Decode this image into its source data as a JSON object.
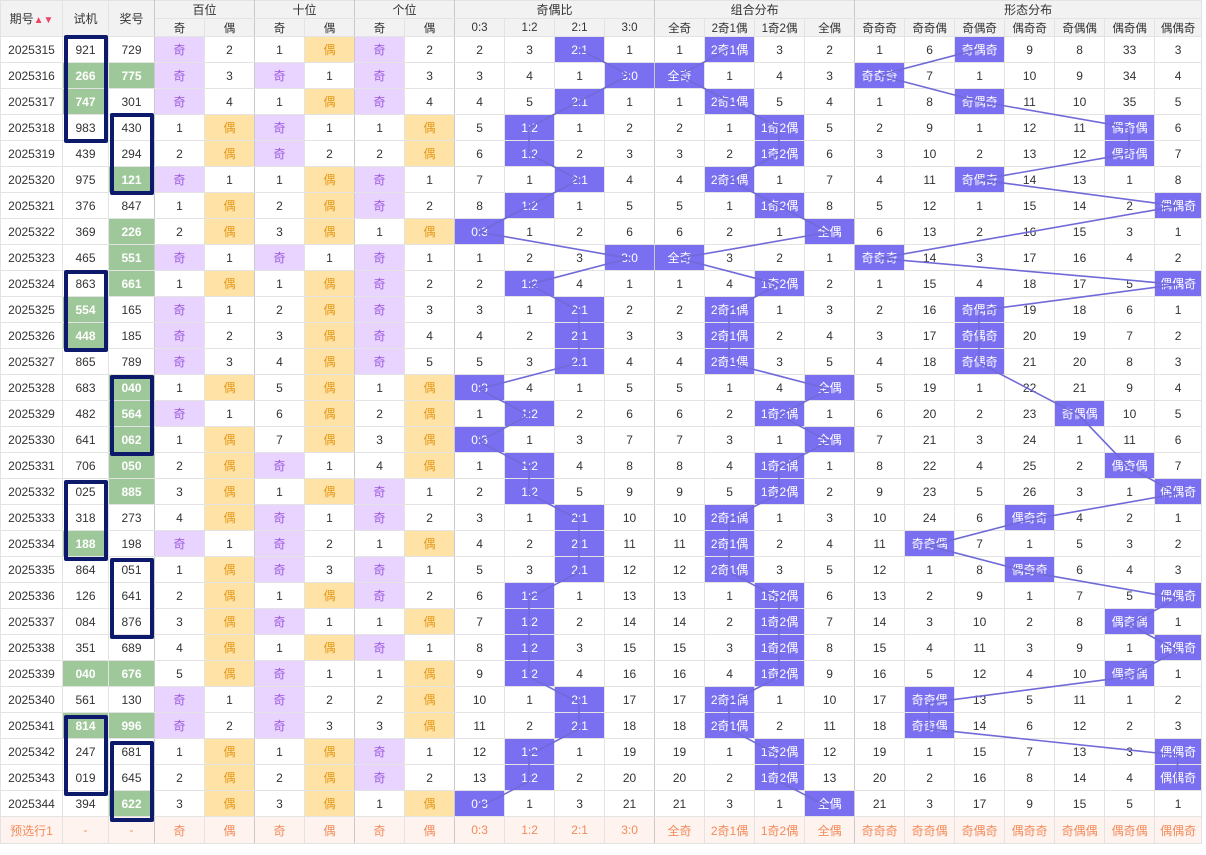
{
  "headers": {
    "period": "期号",
    "test": "试机",
    "prize": "奖号",
    "hundreds": "百位",
    "tens": "十位",
    "units": "个位",
    "ratio": "奇偶比",
    "combo": "组合分布",
    "shape": "形态分布"
  },
  "subheaders": {
    "odd": "奇",
    "even": "偶",
    "ratios": [
      "0:3",
      "1:2",
      "2:1",
      "3:0"
    ],
    "combos": [
      "全奇",
      "2奇1偶",
      "1奇2偶",
      "全偶"
    ],
    "shapes": [
      "奇奇奇",
      "奇奇偶",
      "奇偶奇",
      "偶奇奇",
      "奇偶偶",
      "偶奇偶",
      "偶偶奇"
    ]
  },
  "colors": {
    "odd_bg": "#e9d3ff",
    "even_bg": "#ffe2a6",
    "green": "#9fc89a",
    "pill": "#7a6ff0",
    "box": "#0d1a6b",
    "line": "#6f6ad8"
  },
  "rows": [
    {
      "p": "2025315",
      "t": "921",
      "a": "729",
      "h": [
        "奇",
        "2"
      ],
      "s": [
        "1",
        "偶"
      ],
      "g": [
        "奇",
        "2"
      ],
      "r": [
        "2",
        "3",
        "2:1",
        "1"
      ],
      "c": [
        "1",
        "2奇1偶",
        "3",
        "2"
      ],
      "f": [
        "1",
        "6",
        "奇偶奇",
        "9",
        "8",
        "33",
        "3"
      ]
    },
    {
      "p": "2025316",
      "t": "266",
      "a": "775",
      "h": [
        "奇",
        "3"
      ],
      "s": [
        "奇",
        "1"
      ],
      "g": [
        "奇",
        "3"
      ],
      "r": [
        "3",
        "4",
        "1",
        "3:0"
      ],
      "c": [
        "全奇",
        "1",
        "4",
        "3"
      ],
      "f": [
        "奇奇奇",
        "7",
        "1",
        "10",
        "9",
        "34",
        "4"
      ]
    },
    {
      "p": "2025317",
      "t": "747",
      "a": "301",
      "h": [
        "奇",
        "4"
      ],
      "s": [
        "1",
        "偶"
      ],
      "g": [
        "奇",
        "4"
      ],
      "r": [
        "4",
        "5",
        "2:1",
        "1"
      ],
      "c": [
        "1",
        "2奇1偶",
        "5",
        "4"
      ],
      "f": [
        "1",
        "8",
        "奇偶奇",
        "11",
        "10",
        "35",
        "5"
      ]
    },
    {
      "p": "2025318",
      "t": "983",
      "a": "430",
      "h": [
        "1",
        "偶"
      ],
      "s": [
        "奇",
        "1"
      ],
      "g": [
        "1",
        "偶"
      ],
      "r": [
        "5",
        "1:2",
        "1",
        "2"
      ],
      "c": [
        "2",
        "1",
        "1奇2偶",
        "5"
      ],
      "f": [
        "2",
        "9",
        "1",
        "12",
        "11",
        "偶奇偶",
        "6"
      ]
    },
    {
      "p": "2025319",
      "t": "439",
      "a": "294",
      "h": [
        "2",
        "偶"
      ],
      "s": [
        "奇",
        "2"
      ],
      "g": [
        "2",
        "偶"
      ],
      "r": [
        "6",
        "1:2",
        "2",
        "3"
      ],
      "c": [
        "3",
        "2",
        "1奇2偶",
        "6"
      ],
      "f": [
        "3",
        "10",
        "2",
        "13",
        "12",
        "偶奇偶",
        "7"
      ]
    },
    {
      "p": "2025320",
      "t": "975",
      "a": "121",
      "h": [
        "奇",
        "1"
      ],
      "s": [
        "1",
        "偶"
      ],
      "g": [
        "奇",
        "1"
      ],
      "r": [
        "7",
        "1",
        "2:1",
        "4"
      ],
      "c": [
        "4",
        "2奇1偶",
        "1",
        "7"
      ],
      "f": [
        "4",
        "11",
        "奇偶奇",
        "14",
        "13",
        "1",
        "8"
      ]
    },
    {
      "p": "2025321",
      "t": "376",
      "a": "847",
      "h": [
        "1",
        "偶"
      ],
      "s": [
        "2",
        "偶"
      ],
      "g": [
        "奇",
        "2"
      ],
      "r": [
        "8",
        "1:2",
        "1",
        "5"
      ],
      "c": [
        "5",
        "1",
        "1奇2偶",
        "8"
      ],
      "f": [
        "5",
        "12",
        "1",
        "15",
        "14",
        "2",
        "偶偶奇"
      ]
    },
    {
      "p": "2025322",
      "t": "369",
      "a": "226",
      "h": [
        "2",
        "偶"
      ],
      "s": [
        "3",
        "偶"
      ],
      "g": [
        "1",
        "偶"
      ],
      "r": [
        "0:3",
        "1",
        "2",
        "6"
      ],
      "c": [
        "6",
        "2",
        "1",
        "全偶"
      ],
      "f": [
        "6",
        "13",
        "2",
        "16",
        "15",
        "3",
        "1"
      ]
    },
    {
      "p": "2025323",
      "t": "465",
      "a": "551",
      "h": [
        "奇",
        "1"
      ],
      "s": [
        "奇",
        "1"
      ],
      "g": [
        "奇",
        "1"
      ],
      "r": [
        "1",
        "2",
        "3",
        "3:0"
      ],
      "c": [
        "全奇",
        "3",
        "2",
        "1"
      ],
      "f": [
        "奇奇奇",
        "14",
        "3",
        "17",
        "16",
        "4",
        "2"
      ]
    },
    {
      "p": "2025324",
      "t": "863",
      "a": "661",
      "h": [
        "1",
        "偶"
      ],
      "s": [
        "1",
        "偶"
      ],
      "g": [
        "奇",
        "2"
      ],
      "r": [
        "2",
        "1:2",
        "4",
        "1"
      ],
      "c": [
        "1",
        "4",
        "1奇2偶",
        "2"
      ],
      "f": [
        "1",
        "15",
        "4",
        "18",
        "17",
        "5",
        "偶偶奇"
      ]
    },
    {
      "p": "2025325",
      "t": "554",
      "a": "165",
      "h": [
        "奇",
        "1"
      ],
      "s": [
        "2",
        "偶"
      ],
      "g": [
        "奇",
        "3"
      ],
      "r": [
        "3",
        "1",
        "2:1",
        "2"
      ],
      "c": [
        "2",
        "2奇1偶",
        "1",
        "3"
      ],
      "f": [
        "2",
        "16",
        "奇偶奇",
        "19",
        "18",
        "6",
        "1"
      ]
    },
    {
      "p": "2025326",
      "t": "448",
      "a": "185",
      "h": [
        "奇",
        "2"
      ],
      "s": [
        "3",
        "偶"
      ],
      "g": [
        "奇",
        "4"
      ],
      "r": [
        "4",
        "2",
        "2:1",
        "3"
      ],
      "c": [
        "3",
        "2奇1偶",
        "2",
        "4"
      ],
      "f": [
        "3",
        "17",
        "奇偶奇",
        "20",
        "19",
        "7",
        "2"
      ]
    },
    {
      "p": "2025327",
      "t": "865",
      "a": "789",
      "h": [
        "奇",
        "3"
      ],
      "s": [
        "4",
        "偶"
      ],
      "g": [
        "奇",
        "5"
      ],
      "r": [
        "5",
        "3",
        "2:1",
        "4"
      ],
      "c": [
        "4",
        "2奇1偶",
        "3",
        "5"
      ],
      "f": [
        "4",
        "18",
        "奇偶奇",
        "21",
        "20",
        "8",
        "3"
      ]
    },
    {
      "p": "2025328",
      "t": "683",
      "a": "040",
      "h": [
        "1",
        "偶"
      ],
      "s": [
        "5",
        "偶"
      ],
      "g": [
        "1",
        "偶"
      ],
      "r": [
        "0:3",
        "4",
        "1",
        "5"
      ],
      "c": [
        "5",
        "1",
        "4",
        "全偶"
      ],
      "f": [
        "5",
        "19",
        "1",
        "22",
        "21",
        "9",
        "4"
      ]
    },
    {
      "p": "2025329",
      "t": "482",
      "a": "564",
      "h": [
        "奇",
        "1"
      ],
      "s": [
        "6",
        "偶"
      ],
      "g": [
        "2",
        "偶"
      ],
      "r": [
        "1",
        "1:2",
        "2",
        "6"
      ],
      "c": [
        "6",
        "2",
        "1奇2偶",
        "1"
      ],
      "f": [
        "6",
        "20",
        "2",
        "23",
        "奇偶偶",
        "10",
        "5"
      ]
    },
    {
      "p": "2025330",
      "t": "641",
      "a": "062",
      "h": [
        "1",
        "偶"
      ],
      "s": [
        "7",
        "偶"
      ],
      "g": [
        "3",
        "偶"
      ],
      "r": [
        "0:3",
        "1",
        "3",
        "7"
      ],
      "c": [
        "7",
        "3",
        "1",
        "全偶"
      ],
      "f": [
        "7",
        "21",
        "3",
        "24",
        "1",
        "11",
        "6"
      ]
    },
    {
      "p": "2025331",
      "t": "706",
      "a": "050",
      "h": [
        "2",
        "偶"
      ],
      "s": [
        "奇",
        "1"
      ],
      "g": [
        "4",
        "偶"
      ],
      "r": [
        "1",
        "1:2",
        "4",
        "8"
      ],
      "c": [
        "8",
        "4",
        "1奇2偶",
        "1"
      ],
      "f": [
        "8",
        "22",
        "4",
        "25",
        "2",
        "偶奇偶",
        "7"
      ]
    },
    {
      "p": "2025332",
      "t": "025",
      "a": "885",
      "h": [
        "3",
        "偶"
      ],
      "s": [
        "1",
        "偶"
      ],
      "g": [
        "奇",
        "1"
      ],
      "r": [
        "2",
        "1:2",
        "5",
        "9"
      ],
      "c": [
        "9",
        "5",
        "1奇2偶",
        "2"
      ],
      "f": [
        "9",
        "23",
        "5",
        "26",
        "3",
        "1",
        "偶偶奇"
      ]
    },
    {
      "p": "2025333",
      "t": "318",
      "a": "273",
      "h": [
        "4",
        "偶"
      ],
      "s": [
        "奇",
        "1"
      ],
      "g": [
        "奇",
        "2"
      ],
      "r": [
        "3",
        "1",
        "2:1",
        "10"
      ],
      "c": [
        "10",
        "2奇1偶",
        "1",
        "3"
      ],
      "f": [
        "10",
        "24",
        "6",
        "偶奇奇",
        "4",
        "2",
        "1"
      ]
    },
    {
      "p": "2025334",
      "t": "188",
      "a": "198",
      "h": [
        "奇",
        "1"
      ],
      "s": [
        "奇",
        "2"
      ],
      "g": [
        "1",
        "偶"
      ],
      "r": [
        "4",
        "2",
        "2:1",
        "11"
      ],
      "c": [
        "11",
        "2奇1偶",
        "2",
        "4"
      ],
      "f": [
        "11",
        "奇奇偶",
        "7",
        "1",
        "5",
        "3",
        "2"
      ]
    },
    {
      "p": "2025335",
      "t": "864",
      "a": "051",
      "h": [
        "1",
        "偶"
      ],
      "s": [
        "奇",
        "3"
      ],
      "g": [
        "奇",
        "1"
      ],
      "r": [
        "5",
        "3",
        "2:1",
        "12"
      ],
      "c": [
        "12",
        "2奇1偶",
        "3",
        "5"
      ],
      "f": [
        "12",
        "1",
        "8",
        "偶奇奇",
        "6",
        "4",
        "3"
      ]
    },
    {
      "p": "2025336",
      "t": "126",
      "a": "641",
      "h": [
        "2",
        "偶"
      ],
      "s": [
        "1",
        "偶"
      ],
      "g": [
        "奇",
        "2"
      ],
      "r": [
        "6",
        "1:2",
        "1",
        "13"
      ],
      "c": [
        "13",
        "1",
        "1奇2偶",
        "6"
      ],
      "f": [
        "13",
        "2",
        "9",
        "1",
        "7",
        "5",
        "偶偶奇"
      ]
    },
    {
      "p": "2025337",
      "t": "084",
      "a": "876",
      "h": [
        "3",
        "偶"
      ],
      "s": [
        "奇",
        "1"
      ],
      "g": [
        "1",
        "偶"
      ],
      "r": [
        "7",
        "1:2",
        "2",
        "14"
      ],
      "c": [
        "14",
        "2",
        "1奇2偶",
        "7"
      ],
      "f": [
        "14",
        "3",
        "10",
        "2",
        "8",
        "偶奇偶",
        "1"
      ]
    },
    {
      "p": "2025338",
      "t": "351",
      "a": "689",
      "h": [
        "4",
        "偶"
      ],
      "s": [
        "1",
        "偶"
      ],
      "g": [
        "奇",
        "1"
      ],
      "r": [
        "8",
        "1:2",
        "3",
        "15"
      ],
      "c": [
        "15",
        "3",
        "1奇2偶",
        "8"
      ],
      "f": [
        "15",
        "4",
        "11",
        "3",
        "9",
        "1",
        "偶偶奇"
      ]
    },
    {
      "p": "2025339",
      "t": "040",
      "a": "676",
      "h": [
        "5",
        "偶"
      ],
      "s": [
        "奇",
        "1"
      ],
      "g": [
        "1",
        "偶"
      ],
      "r": [
        "9",
        "1:2",
        "4",
        "16"
      ],
      "c": [
        "16",
        "4",
        "1奇2偶",
        "9"
      ],
      "f": [
        "16",
        "5",
        "12",
        "4",
        "10",
        "偶奇偶",
        "1"
      ]
    },
    {
      "p": "2025340",
      "t": "561",
      "a": "130",
      "h": [
        "奇",
        "1"
      ],
      "s": [
        "奇",
        "2"
      ],
      "g": [
        "2",
        "偶"
      ],
      "r": [
        "10",
        "1",
        "2:1",
        "17"
      ],
      "c": [
        "17",
        "2奇1偶",
        "1",
        "10"
      ],
      "f": [
        "17",
        "奇奇偶",
        "13",
        "5",
        "11",
        "1",
        "2"
      ]
    },
    {
      "p": "2025341",
      "t": "814",
      "a": "996",
      "h": [
        "奇",
        "2"
      ],
      "s": [
        "奇",
        "3"
      ],
      "g": [
        "3",
        "偶"
      ],
      "r": [
        "11",
        "2",
        "2:1",
        "18"
      ],
      "c": [
        "18",
        "2奇1偶",
        "2",
        "11"
      ],
      "f": [
        "18",
        "奇奇偶",
        "14",
        "6",
        "12",
        "2",
        "3"
      ]
    },
    {
      "p": "2025342",
      "t": "247",
      "a": "681",
      "h": [
        "1",
        "偶"
      ],
      "s": [
        "1",
        "偶"
      ],
      "g": [
        "奇",
        "1"
      ],
      "r": [
        "12",
        "1:2",
        "1",
        "19"
      ],
      "c": [
        "19",
        "1",
        "1奇2偶",
        "12"
      ],
      "f": [
        "19",
        "1",
        "15",
        "7",
        "13",
        "3",
        "偶偶奇"
      ]
    },
    {
      "p": "2025343",
      "t": "019",
      "a": "645",
      "h": [
        "2",
        "偶"
      ],
      "s": [
        "2",
        "偶"
      ],
      "g": [
        "奇",
        "2"
      ],
      "r": [
        "13",
        "1:2",
        "2",
        "20"
      ],
      "c": [
        "20",
        "2",
        "1奇2偶",
        "13"
      ],
      "f": [
        "20",
        "2",
        "16",
        "8",
        "14",
        "4",
        "偶偶奇"
      ]
    },
    {
      "p": "2025344",
      "t": "394",
      "a": "622",
      "h": [
        "3",
        "偶"
      ],
      "s": [
        "3",
        "偶"
      ],
      "g": [
        "1",
        "偶"
      ],
      "r": [
        "0:3",
        "1",
        "3",
        "21"
      ],
      "c": [
        "21",
        "3",
        "1",
        "全偶"
      ],
      "f": [
        "21",
        "3",
        "17",
        "9",
        "15",
        "5",
        "1"
      ]
    }
  ],
  "green_test": [
    "2025316",
    "2025317",
    "2025325",
    "2025326",
    "2025334",
    "2025339",
    "2025341"
  ],
  "green_prize": [
    "2025316",
    "2025320",
    "2025322",
    "2025323",
    "2025324",
    "2025328",
    "2025329",
    "2025330",
    "2025331",
    "2025332",
    "2025339",
    "2025341",
    "2025344"
  ],
  "prediction": {
    "label": "预选行1",
    "test": "-",
    "prize": "-",
    "cells": [
      "奇",
      "偶",
      "奇",
      "偶",
      "奇",
      "偶",
      "0:3",
      "1:2",
      "2:1",
      "3:0",
      "全奇",
      "2奇1偶",
      "1奇2偶",
      "全偶",
      "奇奇奇",
      "奇奇偶",
      "奇偶奇",
      "偶奇奇",
      "奇偶偶",
      "偶奇偶",
      "偶偶奇"
    ]
  }
}
